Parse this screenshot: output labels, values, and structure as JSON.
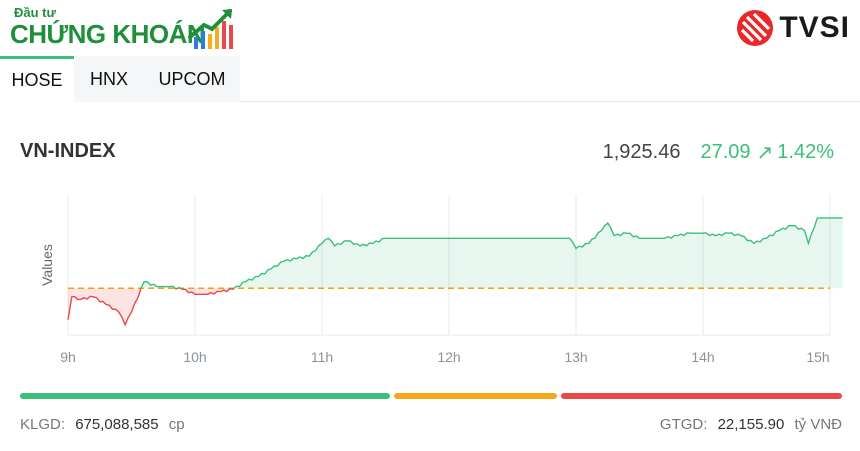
{
  "logo": {
    "small_text": "Đầu tư",
    "big_text": "CHỨNG KHOÁN"
  },
  "brand": {
    "name": "TVSI"
  },
  "tabs": [
    {
      "label": "HOSE",
      "active": true
    },
    {
      "label": "HNX",
      "active": false
    },
    {
      "label": "UPCOM",
      "active": false
    }
  ],
  "index": {
    "name": "VN-INDEX",
    "price": "1,925.46",
    "change": "27.09",
    "change_pct": "1.42%"
  },
  "chart_data": {
    "type": "line",
    "ylabel": "Values",
    "x_ticks": [
      "9h",
      "10h",
      "11h",
      "12h",
      "13h",
      "14h",
      "15h"
    ],
    "reference": 1898.37,
    "ylim": [
      1880,
      1935
    ],
    "series": [
      {
        "x": [
          9.0,
          9.03,
          9.1,
          9.2,
          9.3,
          9.4,
          9.45,
          9.5,
          9.6,
          9.7,
          9.8,
          9.9,
          10.0,
          10.1,
          10.2,
          10.3,
          10.4,
          10.5,
          10.6,
          10.7,
          10.8,
          10.9,
          11.0,
          11.05,
          11.1,
          11.2,
          11.3,
          11.4,
          11.5,
          11.6,
          11.7,
          11.8,
          11.9,
          12.0,
          12.5,
          12.95,
          13.0,
          13.1,
          13.2,
          13.25,
          13.3,
          13.4,
          13.5,
          13.6,
          13.7,
          13.8,
          13.9,
          14.0,
          14.1,
          14.2,
          14.3,
          14.4,
          14.5,
          14.6,
          14.7,
          14.8,
          14.83,
          14.9,
          15.1
        ],
        "y": [
          1886,
          1895,
          1894,
          1895,
          1892,
          1889,
          1884,
          1889,
          1901,
          1899,
          1899,
          1898,
          1896,
          1896,
          1897,
          1898,
          1901,
          1903,
          1906,
          1909,
          1910,
          1911,
          1916,
          1918,
          1915,
          1917,
          1915,
          1916,
          1918,
          1918,
          1918,
          1918,
          1918,
          1918,
          1918,
          1918,
          1914,
          1916,
          1921,
          1924,
          1919,
          1920,
          1918,
          1918,
          1918,
          1919,
          1920,
          1920,
          1919,
          1920,
          1919,
          1916,
          1918,
          1921,
          1923,
          1921,
          1916,
          1926,
          1926
        ]
      }
    ]
  },
  "breadth": {
    "up": 0.455,
    "unchanged": 0.2,
    "down": 0.345
  },
  "footer": {
    "klgd_label": "KLGD:",
    "klgd_value": "675,088,585",
    "klgd_unit": "cp",
    "gtgd_label": "GTGD:",
    "gtgd_value": "22,155.90",
    "gtgd_unit": "tỷ VNĐ"
  },
  "colors": {
    "up": "#3ac07b",
    "down": "#e84a4a",
    "ref": "#f2a20c",
    "unchanged": "#f6a81c"
  }
}
